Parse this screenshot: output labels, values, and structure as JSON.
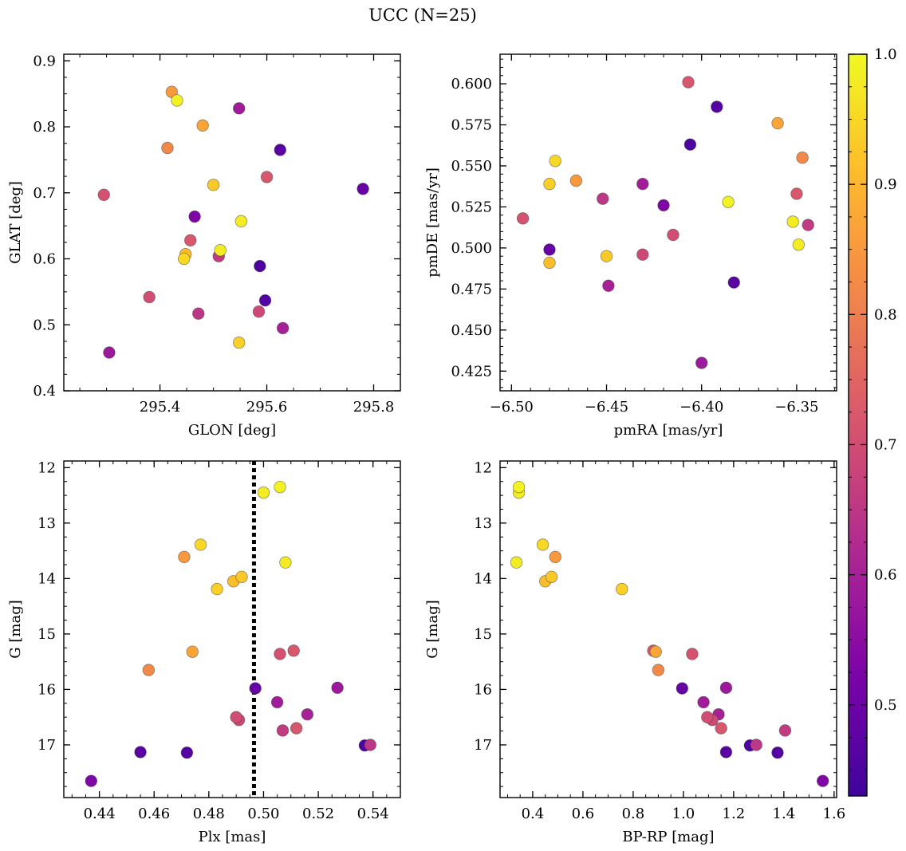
{
  "figure": {
    "title": "UCC (N=25)"
  },
  "colorbar": {
    "range": [
      0.43,
      1.0
    ],
    "ticks": [
      0.5,
      0.6,
      0.7,
      0.8,
      0.9,
      1.0
    ],
    "tick_labels": [
      "0.5",
      "0.6",
      "0.7",
      "0.8",
      "0.9",
      "1.0"
    ],
    "colormap": "plasma"
  },
  "colors": {
    "vline": "#000000"
  },
  "chart_data": [
    {
      "type": "scatter",
      "xlabel": "GLON [deg]",
      "ylabel": "GLAT [deg]",
      "xlim": [
        295.22,
        295.85
      ],
      "ylim": [
        0.4,
        0.91
      ],
      "yinvert": false,
      "xticks": [
        295.4,
        295.6,
        295.8
      ],
      "xtick_labels": [
        "295.4",
        "295.6",
        "295.8"
      ],
      "yticks": [
        0.4,
        0.5,
        0.6,
        0.7,
        0.8,
        0.9
      ],
      "ytick_labels": [
        "0.4",
        "0.5",
        "0.6",
        "0.7",
        "0.8",
        "0.9"
      ],
      "xminor": 0.05,
      "yminor": 0.025
    },
    {
      "type": "scatter",
      "xlabel": "pmRA [mas/yr]",
      "ylabel": "pmDE [mas/yr]",
      "xlim": [
        -6.506,
        -6.329
      ],
      "ylim": [
        0.413,
        0.618
      ],
      "yinvert": false,
      "xticks": [
        -6.5,
        -6.45,
        -6.4,
        -6.35
      ],
      "xtick_labels": [
        "−6.50",
        "−6.45",
        "−6.40",
        "−6.35"
      ],
      "yticks": [
        0.425,
        0.45,
        0.475,
        0.5,
        0.525,
        0.55,
        0.575,
        0.6
      ],
      "ytick_labels": [
        "0.425",
        "0.450",
        "0.475",
        "0.500",
        "0.525",
        "0.550",
        "0.575",
        "0.600"
      ],
      "xminor": 0.01,
      "yminor": 0.005
    },
    {
      "type": "scatter",
      "xlabel": "Plx [mas]",
      "ylabel": "G [mag]",
      "xlim": [
        0.427,
        0.55
      ],
      "ylim": [
        11.88,
        17.95
      ],
      "yinvert": true,
      "xticks": [
        0.44,
        0.46,
        0.48,
        0.5,
        0.52,
        0.54
      ],
      "xtick_labels": [
        "0.44",
        "0.46",
        "0.48",
        "0.50",
        "0.52",
        "0.54"
      ],
      "yticks": [
        12,
        13,
        14,
        15,
        16,
        17
      ],
      "ytick_labels": [
        "12",
        "13",
        "14",
        "15",
        "16",
        "17"
      ],
      "xminor": 0.005,
      "yminor": 0.25,
      "vline": 0.4965
    },
    {
      "type": "scatter",
      "xlabel": "BP-RP [mag]",
      "ylabel": "G [mag]",
      "xlim": [
        0.27,
        1.61
      ],
      "ylim": [
        11.88,
        17.95
      ],
      "yinvert": true,
      "xticks": [
        0.4,
        0.6,
        0.8,
        1.0,
        1.2,
        1.4,
        1.6
      ],
      "xtick_labels": [
        "0.4",
        "0.6",
        "0.8",
        "1.0",
        "1.2",
        "1.4",
        "1.6"
      ],
      "yticks": [
        12,
        13,
        14,
        15,
        16,
        17
      ],
      "ytick_labels": [
        "12",
        "13",
        "14",
        "15",
        "16",
        "17"
      ],
      "xminor": 0.05,
      "yminor": 0.25
    }
  ],
  "stars": [
    {
      "glon": 295.432,
      "glat": 0.84,
      "pmra": -6.386,
      "pmde": 0.528,
      "plx": 0.506,
      "g": 12.35,
      "bprp": 0.345,
      "p": 0.99
    },
    {
      "glon": 295.552,
      "glat": 0.657,
      "pmra": -6.352,
      "pmde": 0.516,
      "plx": 0.5,
      "g": 12.45,
      "bprp": 0.345,
      "p": 0.98
    },
    {
      "glon": 295.445,
      "glat": 0.6,
      "pmra": -6.477,
      "pmde": 0.553,
      "plx": 0.477,
      "g": 13.39,
      "bprp": 0.44,
      "p": 0.95
    },
    {
      "glon": 295.513,
      "glat": 0.613,
      "pmra": -6.349,
      "pmde": 0.502,
      "plx": 0.508,
      "g": 13.71,
      "bprp": 0.335,
      "p": 0.98
    },
    {
      "glon": 295.5,
      "glat": 0.712,
      "pmra": -6.45,
      "pmde": 0.495,
      "plx": 0.492,
      "g": 13.97,
      "bprp": 0.475,
      "p": 0.93
    },
    {
      "glon": 295.548,
      "glat": 0.473,
      "pmra": -6.48,
      "pmde": 0.539,
      "plx": 0.483,
      "g": 14.19,
      "bprp": 0.755,
      "p": 0.94
    },
    {
      "glon": 295.448,
      "glat": 0.607,
      "pmra": -6.48,
      "pmde": 0.491,
      "plx": 0.489,
      "g": 14.05,
      "bprp": 0.45,
      "p": 0.91
    },
    {
      "glon": 295.422,
      "glat": 0.853,
      "pmra": -6.466,
      "pmde": 0.541,
      "plx": 0.471,
      "g": 13.61,
      "bprp": 0.49,
      "p": 0.85
    },
    {
      "glon": 295.48,
      "glat": 0.802,
      "pmra": -6.36,
      "pmde": 0.576,
      "plx": 0.474,
      "g": 15.32,
      "bprp": 0.89,
      "p": 0.87
    },
    {
      "glon": 295.414,
      "glat": 0.768,
      "pmra": -6.347,
      "pmde": 0.555,
      "plx": 0.458,
      "g": 15.65,
      "bprp": 0.9,
      "p": 0.82
    },
    {
      "glon": 295.6,
      "glat": 0.724,
      "pmra": -6.35,
      "pmde": 0.533,
      "plx": 0.511,
      "g": 15.3,
      "bprp": 0.88,
      "p": 0.72
    },
    {
      "glon": 295.295,
      "glat": 0.697,
      "pmra": -6.494,
      "pmde": 0.518,
      "plx": 0.506,
      "g": 15.36,
      "bprp": 1.035,
      "p": 0.71
    },
    {
      "glon": 295.457,
      "glat": 0.628,
      "pmra": -6.407,
      "pmde": 0.601,
      "plx": 0.512,
      "g": 16.7,
      "bprp": 1.15,
      "p": 0.72
    },
    {
      "glon": 295.38,
      "glat": 0.542,
      "pmra": -6.415,
      "pmde": 0.508,
      "plx": 0.49,
      "g": 16.5,
      "bprp": 1.095,
      "p": 0.7
    },
    {
      "glon": 295.585,
      "glat": 0.52,
      "pmra": -6.431,
      "pmde": 0.496,
      "plx": 0.491,
      "g": 16.55,
      "bprp": 1.115,
      "p": 0.69
    },
    {
      "glon": 295.51,
      "glat": 0.604,
      "pmra": -6.344,
      "pmde": 0.514,
      "plx": 0.507,
      "g": 16.74,
      "bprp": 1.405,
      "p": 0.66
    },
    {
      "glon": 295.472,
      "glat": 0.517,
      "pmra": -6.452,
      "pmde": 0.53,
      "plx": 0.539,
      "g": 17.0,
      "bprp": 1.29,
      "p": 0.65
    },
    {
      "glon": 295.63,
      "glat": 0.495,
      "pmra": -6.449,
      "pmde": 0.477,
      "plx": 0.516,
      "g": 16.45,
      "bprp": 1.14,
      "p": 0.6
    },
    {
      "glon": 295.548,
      "glat": 0.828,
      "pmra": -6.431,
      "pmde": 0.539,
      "plx": 0.505,
      "g": 16.23,
      "bprp": 1.08,
      "p": 0.59
    },
    {
      "glon": 295.305,
      "glat": 0.458,
      "pmra": -6.4,
      "pmde": 0.43,
      "plx": 0.527,
      "g": 15.97,
      "bprp": 1.17,
      "p": 0.58
    },
    {
      "glon": 295.465,
      "glat": 0.664,
      "pmra": -6.42,
      "pmde": 0.526,
      "plx": 0.437,
      "g": 17.65,
      "bprp": 1.555,
      "p": 0.53
    },
    {
      "glon": 295.78,
      "glat": 0.706,
      "pmra": -6.48,
      "pmde": 0.499,
      "plx": 0.497,
      "g": 15.98,
      "bprp": 0.995,
      "p": 0.49
    },
    {
      "glon": 295.625,
      "glat": 0.765,
      "pmra": -6.383,
      "pmde": 0.479,
      "plx": 0.455,
      "g": 17.13,
      "bprp": 1.17,
      "p": 0.47
    },
    {
      "glon": 295.597,
      "glat": 0.537,
      "pmra": -6.392,
      "pmde": 0.586,
      "plx": 0.472,
      "g": 17.14,
      "bprp": 1.375,
      "p": 0.46
    },
    {
      "glon": 295.587,
      "glat": 0.589,
      "pmra": -6.406,
      "pmde": 0.563,
      "plx": 0.537,
      "g": 17.01,
      "bprp": 1.265,
      "p": 0.45
    }
  ]
}
